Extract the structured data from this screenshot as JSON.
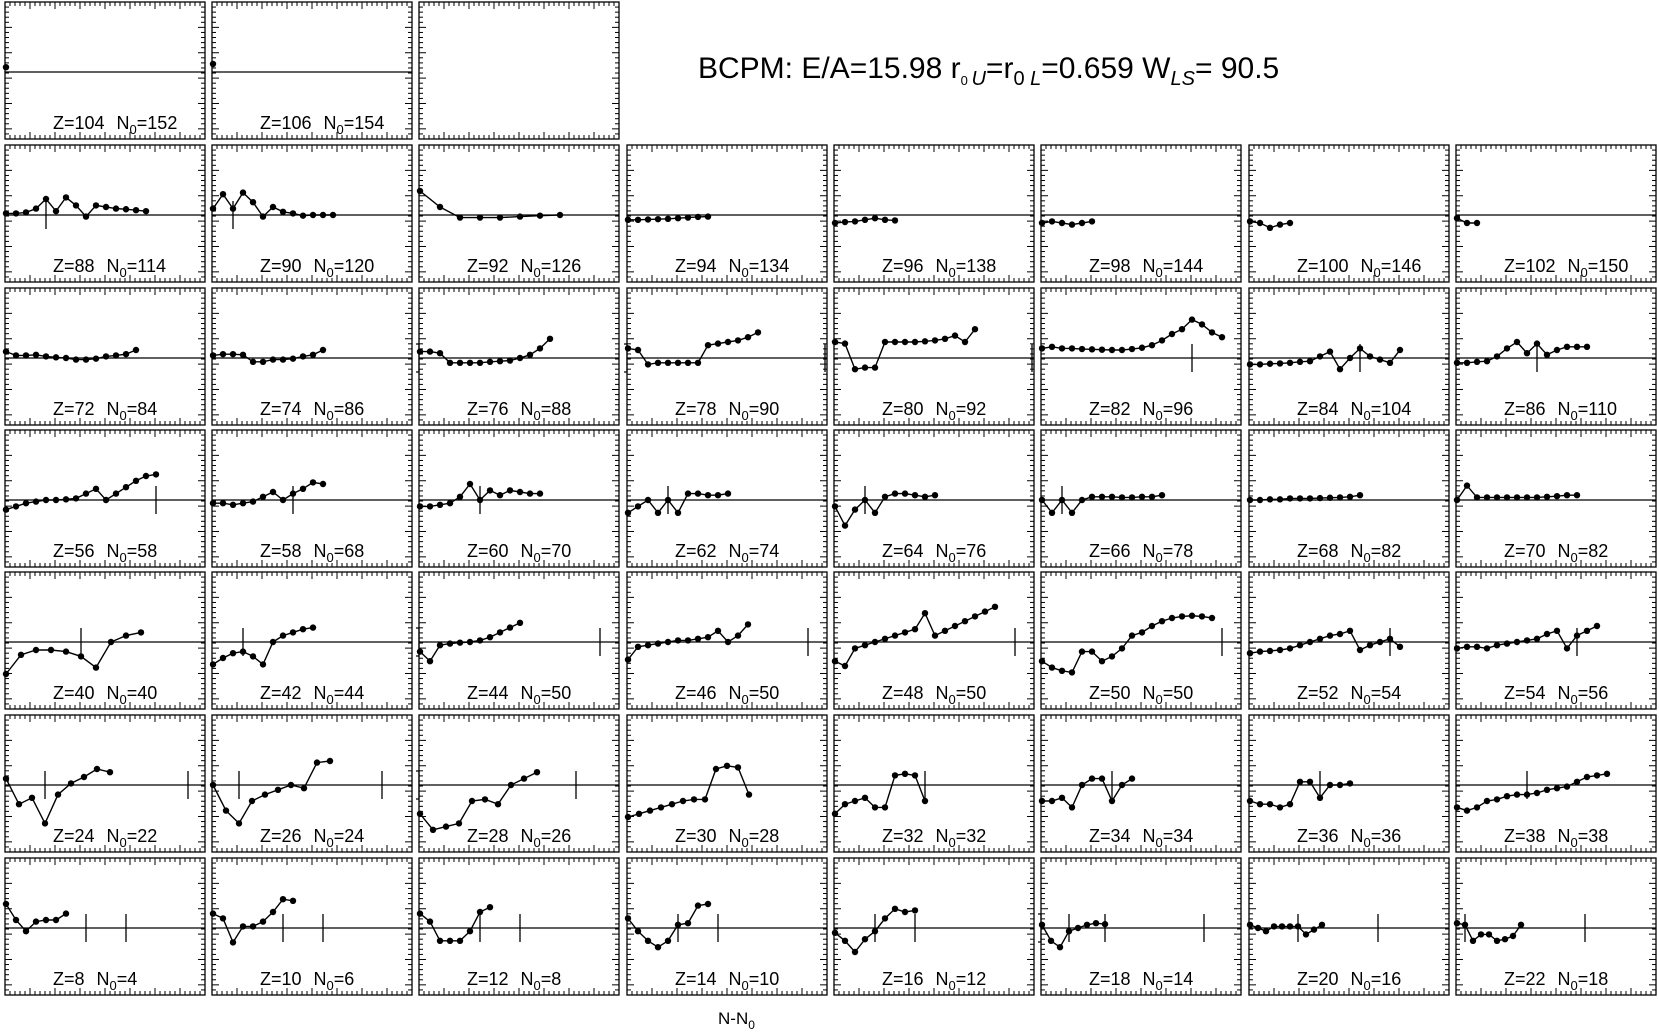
{
  "title": {
    "prefix": "BCPM: E/A=15.98  r",
    "r_sub1": "0 ",
    "r_sub1_it": "U",
    "mid": "=r",
    "r_sub2": "0 ",
    "r_sub2_it": "L",
    "mid2": "=0.659  W",
    "w_sub": "LS",
    "suffix": "= 90.5"
  },
  "xlabel": {
    "main": "N-N",
    "sub": "0"
  },
  "chart_data": {
    "type": "line",
    "grid": false,
    "layout": "7 rows by 8 columns of small panels; top row has 3 panels",
    "panels": [
      {
        "z": "Z=104",
        "n0": "152",
        "row": 0,
        "col": 0,
        "y": [
          0.15
        ],
        "ticks": []
      },
      {
        "z": "Z=106",
        "n0": "154",
        "row": 0,
        "col": 1,
        "y": [
          0.25
        ],
        "ticks": []
      },
      {
        "z": "",
        "n0": "",
        "row": 0,
        "col": 2,
        "y": [],
        "ticks": [],
        "noline": true
      },
      {
        "z": "Z=88",
        "n0": "114",
        "row": 1,
        "col": 0,
        "y": [
          0.05,
          0.05,
          0.08,
          0.2,
          0.5,
          0.12,
          0.55,
          0.3,
          -0.05,
          0.3,
          0.25,
          0.2,
          0.18,
          0.15,
          0.12
        ],
        "ticks": [
          4
        ]
      },
      {
        "z": "Z=90",
        "n0": "120",
        "row": 1,
        "col": 1,
        "y": [
          0.2,
          0.65,
          0.2,
          0.7,
          0.4,
          -0.05,
          0.25,
          0.1,
          0.05,
          -0.02,
          0.0,
          0.0,
          0.0
        ],
        "ticks": [
          2
        ]
      },
      {
        "z": "Z=92",
        "n0": "126",
        "row": 1,
        "col": 2,
        "y": [
          0.75,
          0.25,
          -0.08,
          -0.08,
          -0.08,
          -0.05,
          -0.02,
          0.0
        ],
        "ticks": [],
        "sparse": 2
      },
      {
        "z": "Z=94",
        "n0": "134",
        "row": 1,
        "col": 3,
        "y": [
          -0.15,
          -0.15,
          -0.14,
          -0.13,
          -0.12,
          -0.1,
          -0.08,
          -0.06,
          -0.05
        ],
        "ticks": []
      },
      {
        "z": "Z=96",
        "n0": "138",
        "row": 1,
        "col": 4,
        "y": [
          -0.25,
          -0.22,
          -0.2,
          -0.15,
          -0.1,
          -0.15,
          -0.17
        ],
        "ticks": []
      },
      {
        "z": "Z=98",
        "n0": "144",
        "row": 1,
        "col": 5,
        "y": [
          -0.25,
          -0.2,
          -0.25,
          -0.3,
          -0.25,
          -0.2
        ],
        "ticks": []
      },
      {
        "z": "Z=100",
        "n0": "146",
        "row": 1,
        "col": 6,
        "y": [
          -0.2,
          -0.25,
          -0.4,
          -0.3,
          -0.25
        ],
        "ticks": []
      },
      {
        "z": "Z=102",
        "n0": "150",
        "row": 1,
        "col": 7,
        "y": [
          -0.1,
          -0.25,
          -0.25
        ],
        "ticks": []
      },
      {
        "z": "Z=72",
        "n0": "84",
        "row": 2,
        "col": 0,
        "y": [
          0.2,
          0.08,
          0.08,
          0.1,
          0.05,
          0.02,
          0.0,
          -0.05,
          -0.05,
          -0.02,
          0.05,
          0.08,
          0.12,
          0.25
        ],
        "ticks": []
      },
      {
        "z": "Z=74",
        "n0": "86",
        "row": 2,
        "col": 1,
        "y": [
          0.08,
          0.12,
          0.12,
          0.1,
          -0.12,
          -0.12,
          -0.05,
          -0.05,
          -0.02,
          0.05,
          0.1,
          0.25
        ],
        "ticks": []
      },
      {
        "z": "Z=76",
        "n0": "88",
        "row": 2,
        "col": 2,
        "y": [
          0.2,
          0.2,
          0.15,
          -0.15,
          -0.15,
          -0.15,
          -0.15,
          -0.12,
          -0.1,
          -0.08,
          0.0,
          0.1,
          0.3,
          0.6
        ],
        "ticks": [
          -1
        ]
      },
      {
        "z": "Z=78",
        "n0": "90",
        "row": 2,
        "col": 3,
        "y": [
          0.3,
          0.25,
          -0.2,
          -0.15,
          -0.15,
          -0.15,
          -0.15,
          -0.15,
          0.4,
          0.45,
          0.5,
          0.55,
          0.65,
          0.8
        ],
        "ticks": [
          -1,
          20
        ]
      },
      {
        "z": "Z=80",
        "n0": "92",
        "row": 2,
        "col": 4,
        "y": [
          0.5,
          0.45,
          -0.35,
          -0.3,
          -0.3,
          0.5,
          0.5,
          0.5,
          0.5,
          0.52,
          0.55,
          0.6,
          0.7,
          0.5,
          0.9
        ],
        "ticks": [
          20
        ]
      },
      {
        "z": "Z=82",
        "n0": "96",
        "row": 2,
        "col": 5,
        "y": [
          0.3,
          0.35,
          0.3,
          0.3,
          0.28,
          0.27,
          0.26,
          0.25,
          0.25,
          0.28,
          0.32,
          0.4,
          0.55,
          0.75,
          0.9,
          1.2,
          1.05,
          0.8,
          0.65
        ],
        "ticks": [
          15
        ]
      },
      {
        "z": "Z=84",
        "n0": "104",
        "row": 2,
        "col": 6,
        "y": [
          -0.2,
          -0.2,
          -0.18,
          -0.17,
          -0.15,
          -0.12,
          -0.1,
          0.05,
          0.2,
          -0.35,
          0.0,
          0.3,
          0.05,
          -0.05,
          -0.15,
          0.25
        ],
        "ticks": [
          11
        ]
      },
      {
        "z": "Z=86",
        "n0": "110",
        "row": 2,
        "col": 7,
        "y": [
          -0.15,
          -0.15,
          -0.12,
          -0.1,
          0.05,
          0.3,
          0.5,
          0.15,
          0.45,
          0.1,
          0.25,
          0.35,
          0.35,
          0.35
        ],
        "ticks": [
          8
        ]
      },
      {
        "z": "Z=56",
        "n0": "58",
        "row": 3,
        "col": 0,
        "y": [
          -0.3,
          -0.2,
          -0.1,
          -0.05,
          0.0,
          0.0,
          0.02,
          0.05,
          0.2,
          0.35,
          0.0,
          0.2,
          0.4,
          0.6,
          0.75,
          0.8
        ],
        "ticks": [
          15
        ]
      },
      {
        "z": "Z=58",
        "n0": "68",
        "row": 3,
        "col": 1,
        "y": [
          -0.1,
          -0.1,
          -0.15,
          -0.1,
          -0.05,
          0.1,
          0.25,
          0.0,
          0.2,
          0.35,
          0.55,
          0.5
        ],
        "ticks": [
          8
        ]
      },
      {
        "z": "Z=60",
        "n0": "70",
        "row": 3,
        "col": 2,
        "y": [
          -0.2,
          -0.2,
          -0.15,
          -0.1,
          0.1,
          0.5,
          0.0,
          0.3,
          0.15,
          0.3,
          0.25,
          0.2,
          0.2
        ],
        "ticks": [
          6
        ]
      },
      {
        "z": "Z=62",
        "n0": "74",
        "row": 3,
        "col": 3,
        "y": [
          -0.4,
          -0.2,
          0.0,
          -0.4,
          0.0,
          -0.4,
          0.2,
          0.2,
          0.15,
          0.15,
          0.2
        ],
        "ticks": [
          4
        ]
      },
      {
        "z": "Z=64",
        "n0": "76",
        "row": 3,
        "col": 4,
        "y": [
          -0.2,
          -0.8,
          -0.3,
          0.0,
          -0.4,
          0.1,
          0.2,
          0.2,
          0.15,
          0.1,
          0.15
        ],
        "ticks": [
          3
        ]
      },
      {
        "z": "Z=66",
        "n0": "78",
        "row": 3,
        "col": 5,
        "y": [
          0.0,
          -0.4,
          0.0,
          -0.4,
          0.0,
          0.1,
          0.1,
          0.1,
          0.08,
          0.08,
          0.1,
          0.1,
          0.15
        ],
        "ticks": [
          2
        ]
      },
      {
        "z": "Z=68",
        "n0": "82",
        "row": 3,
        "col": 6,
        "y": [
          0.0,
          0.0,
          0.02,
          0.02,
          0.05,
          0.05,
          0.05,
          0.06,
          0.07,
          0.08,
          0.1,
          0.15
        ],
        "ticks": []
      },
      {
        "z": "Z=70",
        "n0": "82",
        "row": 3,
        "col": 7,
        "y": [
          0.0,
          0.45,
          0.08,
          0.08,
          0.08,
          0.08,
          0.08,
          0.08,
          0.08,
          0.1,
          0.12,
          0.15,
          0.15
        ],
        "ticks": []
      },
      {
        "z": "Z=40",
        "n0": "40",
        "row": 4,
        "col": 0,
        "y": [
          -1.0,
          -0.4,
          -0.25,
          -0.25,
          -0.3,
          -0.45,
          -0.8,
          0.0,
          0.2,
          0.3
        ],
        "ticks": [
          5
        ],
        "sparse": 1.5
      },
      {
        "z": "Z=42",
        "n0": "44",
        "row": 4,
        "col": 1,
        "y": [
          -0.7,
          -0.5,
          -0.35,
          -0.3,
          -0.45,
          -0.7,
          0.0,
          0.2,
          0.3,
          0.4,
          0.45
        ],
        "ticks": [
          3
        ]
      },
      {
        "z": "Z=44",
        "n0": "50",
        "row": 4,
        "col": 2,
        "y": [
          -0.3,
          -0.6,
          -0.1,
          -0.05,
          -0.02,
          0.0,
          0.05,
          0.15,
          0.3,
          0.45,
          0.6
        ],
        "ticks": [
          -1,
          18
        ]
      },
      {
        "z": "Z=46",
        "n0": "50",
        "row": 4,
        "col": 3,
        "y": [
          -0.55,
          -0.15,
          -0.1,
          -0.05,
          0.0,
          0.05,
          0.05,
          0.1,
          0.15,
          0.35,
          0.0,
          0.2,
          0.55
        ],
        "ticks": [
          18
        ]
      },
      {
        "z": "Z=48",
        "n0": "50",
        "row": 4,
        "col": 4,
        "y": [
          -0.6,
          -0.75,
          -0.2,
          -0.1,
          0.0,
          0.1,
          0.2,
          0.3,
          0.4,
          0.9,
          0.2,
          0.35,
          0.5,
          0.65,
          0.8,
          0.95,
          1.1
        ],
        "ticks": [
          18
        ]
      },
      {
        "z": "Z=50",
        "n0": "50",
        "row": 4,
        "col": 5,
        "y": [
          -0.6,
          -0.8,
          -0.9,
          -0.95,
          -0.3,
          -0.3,
          -0.6,
          -0.45,
          -0.2,
          0.2,
          0.3,
          0.5,
          0.65,
          0.75,
          0.8,
          0.82,
          0.8,
          0.75
        ],
        "ticks": [
          18
        ]
      },
      {
        "z": "Z=52",
        "n0": "54",
        "row": 4,
        "col": 6,
        "y": [
          -0.35,
          -0.3,
          -0.28,
          -0.25,
          -0.2,
          -0.1,
          0.0,
          0.1,
          0.2,
          0.25,
          0.35,
          -0.25,
          -0.1,
          0.0,
          0.1,
          -0.15
        ],
        "ticks": [
          14
        ]
      },
      {
        "z": "Z=54",
        "n0": "56",
        "row": 4,
        "col": 7,
        "y": [
          -0.2,
          -0.15,
          -0.15,
          -0.2,
          -0.1,
          -0.05,
          0.0,
          0.05,
          0.1,
          0.25,
          0.35,
          -0.2,
          0.2,
          0.35,
          0.5
        ],
        "ticks": [
          12
        ]
      },
      {
        "z": "Z=24",
        "n0": "22",
        "row": 5,
        "col": 0,
        "y": [
          0.2,
          -0.6,
          -0.4,
          -1.2,
          -0.3,
          0.05,
          0.25,
          0.5,
          0.4
        ],
        "ticks": [
          3,
          14
        ],
        "sparse": 1.3
      },
      {
        "z": "Z=26",
        "n0": "24",
        "row": 5,
        "col": 1,
        "y": [
          0.0,
          -0.8,
          -1.2,
          -0.5,
          -0.3,
          -0.15,
          0.0,
          -0.1,
          0.7,
          0.75
        ],
        "ticks": [
          2,
          13
        ],
        "sparse": 1.3
      },
      {
        "z": "Z=28",
        "n0": "26",
        "row": 5,
        "col": 2,
        "y": [
          -0.9,
          -1.4,
          -1.3,
          -1.2,
          -0.5,
          -0.45,
          -0.6,
          0.0,
          0.2,
          0.4
        ],
        "ticks": [
          -1,
          12
        ],
        "sparse": 1.3
      },
      {
        "z": "Z=30",
        "n0": "28",
        "row": 5,
        "col": 3,
        "y": [
          -1.0,
          -0.9,
          -0.8,
          -0.7,
          -0.6,
          -0.5,
          -0.45,
          -0.45,
          0.5,
          0.6,
          0.55,
          -0.3
        ],
        "ticks": [],
        "sparse": 1.1
      },
      {
        "z": "Z=32",
        "n0": "32",
        "row": 5,
        "col": 4,
        "y": [
          -0.9,
          -0.6,
          -0.5,
          -0.4,
          -0.7,
          -0.7,
          0.3,
          0.35,
          0.3,
          -0.5
        ],
        "ticks": [
          9
        ]
      },
      {
        "z": "Z=34",
        "n0": "34",
        "row": 5,
        "col": 5,
        "y": [
          -0.5,
          -0.5,
          -0.4,
          -0.7,
          0.0,
          0.2,
          0.2,
          -0.5,
          0.0,
          0.2
        ],
        "ticks": [
          7
        ]
      },
      {
        "z": "Z=36",
        "n0": "36",
        "row": 5,
        "col": 6,
        "y": [
          -0.5,
          -0.6,
          -0.6,
          -0.7,
          -0.6,
          0.1,
          0.1,
          -0.4,
          0.0,
          0.0,
          0.05
        ],
        "ticks": [
          7
        ]
      },
      {
        "z": "Z=38",
        "n0": "38",
        "row": 5,
        "col": 7,
        "y": [
          -0.7,
          -0.8,
          -0.7,
          -0.5,
          -0.45,
          -0.35,
          -0.3,
          -0.3,
          -0.25,
          -0.15,
          -0.1,
          -0.05,
          0.1,
          0.25,
          0.3,
          0.35
        ],
        "ticks": [
          7
        ]
      },
      {
        "z": "Z=8",
        "n0": "4",
        "row": 6,
        "col": 0,
        "y": [
          0.75,
          0.25,
          -0.1,
          0.2,
          0.25,
          0.25,
          0.45
        ],
        "ticks": [
          8,
          12
        ],
        "sparse": 1.0
      },
      {
        "z": "Z=10",
        "n0": "6",
        "row": 6,
        "col": 1,
        "y": [
          0.45,
          0.3,
          -0.45,
          0.05,
          0.05,
          0.2,
          0.5,
          0.9,
          0.85
        ],
        "ticks": [
          7,
          11
        ],
        "sparse": 1.0
      },
      {
        "z": "Z=12",
        "n0": "8",
        "row": 6,
        "col": 2,
        "y": [
          0.45,
          0.2,
          -0.4,
          -0.4,
          -0.4,
          -0.1,
          0.5,
          0.65
        ],
        "ticks": [
          6,
          10
        ],
        "sparse": 1.0
      },
      {
        "z": "Z=14",
        "n0": "10",
        "row": 6,
        "col": 3,
        "y": [
          0.3,
          -0.1,
          -0.4,
          -0.6,
          -0.4,
          0.1,
          0.15,
          0.7,
          0.75
        ],
        "ticks": [
          5,
          9
        ],
        "sparse": 1.0
      },
      {
        "z": "Z=16",
        "n0": "12",
        "row": 6,
        "col": 4,
        "y": [
          -0.15,
          -0.4,
          -0.75,
          -0.35,
          -0.1,
          0.3,
          0.6,
          0.5,
          0.55
        ],
        "ticks": [
          4,
          8
        ],
        "sparse": 1.0
      },
      {
        "z": "Z=18",
        "n0": "14",
        "row": 6,
        "col": 5,
        "y": [
          0.1,
          -0.4,
          -0.6,
          -0.1,
          0.0,
          0.1,
          0.15,
          0.12
        ],
        "ticks": [
          -1,
          3,
          7,
          18
        ],
        "sparse": 0.9
      },
      {
        "z": "Z=20",
        "n0": "16",
        "row": 6,
        "col": 6,
        "y": [
          0.1,
          0.0,
          -0.1,
          0.05,
          0.05,
          0.05,
          0.05,
          -0.2,
          -0.05,
          0.1
        ],
        "ticks": [
          6,
          16
        ],
        "sparse": 0.8
      },
      {
        "z": "Z=22",
        "n0": "18",
        "row": 6,
        "col": 7,
        "y": [
          0.15,
          0.1,
          -0.4,
          -0.2,
          -0.2,
          -0.4,
          -0.35,
          -0.25,
          0.1
        ],
        "ticks": [
          1,
          16
        ],
        "sparse": 0.8
      }
    ]
  }
}
